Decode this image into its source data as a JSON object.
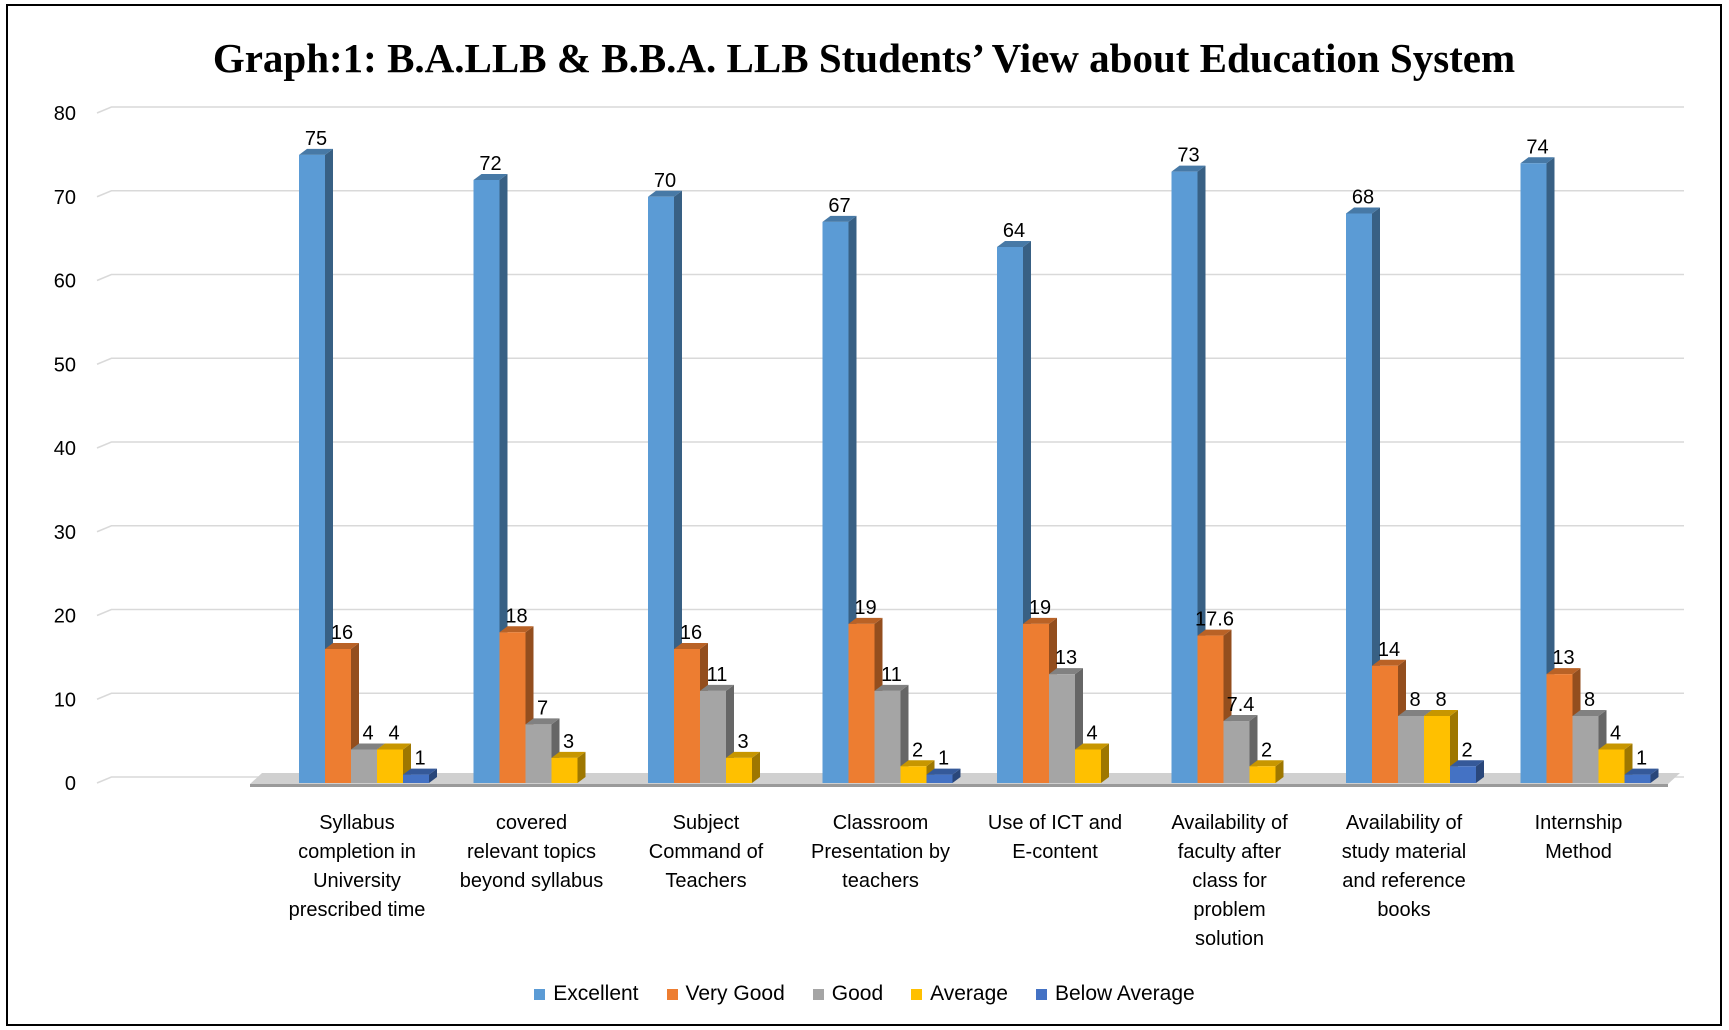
{
  "chart_data": {
    "type": "bar",
    "title": "Graph:1: B.A.LLB & B.B.A. LLB Students’ View about Education System",
    "ylim": [
      0,
      80
    ],
    "yticks": [
      "0",
      "10",
      "20",
      "30",
      "40",
      "50",
      "60",
      "70",
      "80"
    ],
    "grid": true,
    "legend_position": "bottom",
    "categories": [
      "Syllabus completion in University prescribed time",
      "covered relevant topics beyond syllabus",
      "Subject Command of Teachers",
      "Classroom Presentation by teachers",
      "Use of ICT and E-content",
      "Availability of faculty after class for problem solution",
      "Availability of study material and reference books",
      "Internship Method"
    ],
    "category_label_lines": [
      [
        "Syllabus",
        "completion in",
        "University",
        "prescribed time"
      ],
      [
        "covered",
        "relevant topics",
        "beyond syllabus"
      ],
      [
        "Subject",
        "Command of",
        "Teachers"
      ],
      [
        "Classroom",
        "Presentation by",
        "teachers"
      ],
      [
        "Use of ICT and",
        "E-content"
      ],
      [
        "Availability of",
        "faculty after",
        "class for",
        "problem",
        "solution"
      ],
      [
        "Availability of",
        "study material",
        "and reference",
        "books"
      ],
      [
        "Internship",
        "Method"
      ]
    ],
    "series": [
      {
        "name": "Excellent",
        "color": "#5B9BD5",
        "values": [
          75,
          72,
          70,
          67,
          64,
          73,
          68,
          74
        ],
        "labels": [
          "75",
          "72",
          "70",
          "67",
          "64",
          "73",
          "68",
          "74"
        ]
      },
      {
        "name": "Very Good",
        "color": "#ED7D31",
        "values": [
          16,
          18,
          16,
          19,
          19,
          17.6,
          14,
          13
        ],
        "labels": [
          "16",
          "18",
          "16",
          "19",
          "19",
          "17.6",
          "14",
          "13"
        ]
      },
      {
        "name": "Good",
        "color": "#A5A5A5",
        "values": [
          4,
          7,
          11,
          11,
          13,
          7.4,
          8,
          8
        ],
        "labels": [
          "4",
          "7",
          "11",
          "11",
          "13",
          "7.4",
          "8",
          "8"
        ]
      },
      {
        "name": "Average",
        "color": "#FFC000",
        "values": [
          4,
          3,
          3,
          2,
          4,
          2,
          8,
          4
        ],
        "labels": [
          "4",
          "3",
          "3",
          "2",
          "4",
          "2",
          "8",
          "4"
        ]
      },
      {
        "name": "Below Average",
        "color": "#4472C4",
        "values": [
          1,
          null,
          null,
          1,
          null,
          null,
          2,
          1
        ],
        "labels": [
          "1",
          null,
          null,
          "1",
          null,
          null,
          "2",
          "1"
        ]
      }
    ]
  }
}
